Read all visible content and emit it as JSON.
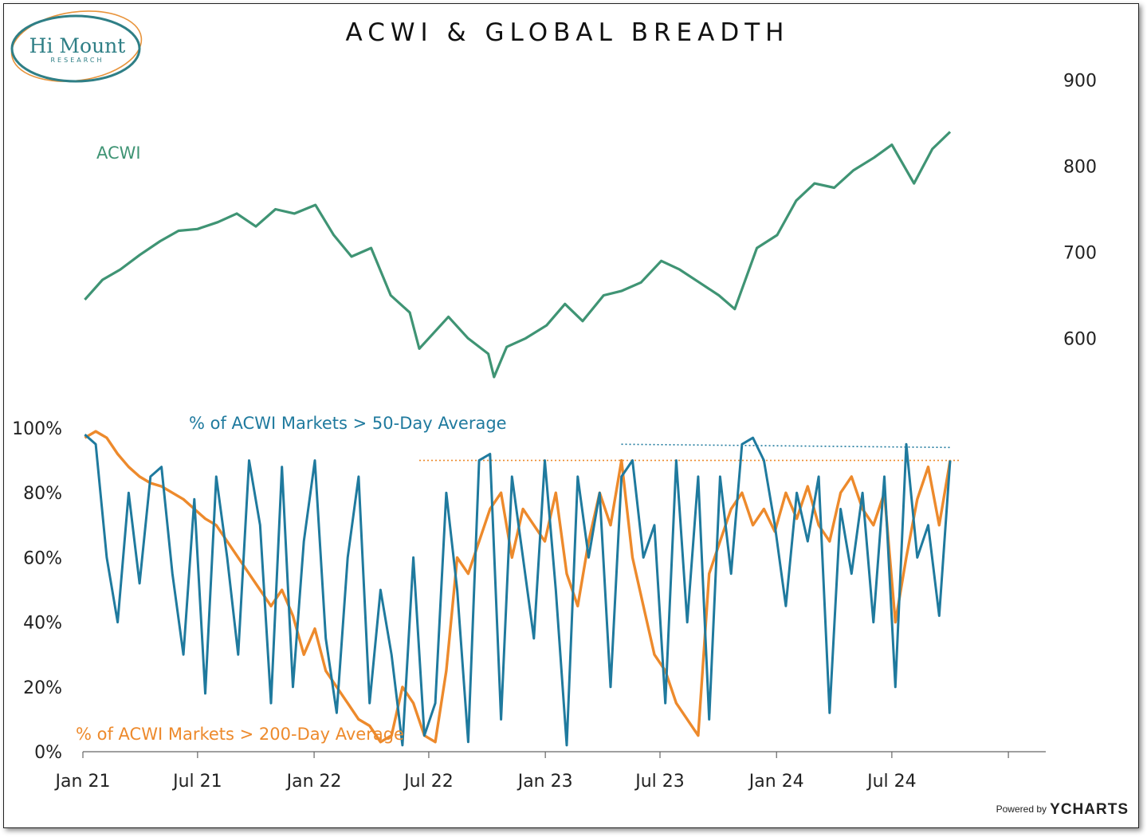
{
  "logo": {
    "name": "Hi Mount",
    "sub": "RESEARCH"
  },
  "footer": {
    "powered_by": "Powered by",
    "brand": "YCHARTS"
  },
  "chart_data": [
    {
      "type": "line",
      "title": "ACWI & GLOBAL BREADTH",
      "series_label": "ACWI",
      "color": "#3f9474",
      "ylim": [
        530,
        920
      ],
      "ytick_values": [
        600,
        700,
        800,
        900
      ],
      "x_tick_labels": [
        "Jan 21",
        "Jul 21",
        "Jan 22",
        "Jul 22",
        "Jan 23",
        "Jul 23",
        "Jan 24",
        "Jul 24"
      ],
      "x": [
        "2021-01-04",
        "2021-02-01",
        "2021-03-01",
        "2021-04-01",
        "2021-05-03",
        "2021-06-01",
        "2021-07-01",
        "2021-08-02",
        "2021-09-01",
        "2021-10-01",
        "2021-11-01",
        "2021-12-01",
        "2022-01-03",
        "2022-02-01",
        "2022-03-01",
        "2022-04-01",
        "2022-05-02",
        "2022-06-01",
        "2022-06-16",
        "2022-07-01",
        "2022-08-01",
        "2022-09-01",
        "2022-10-03",
        "2022-10-12",
        "2022-11-01",
        "2022-12-01",
        "2023-01-03",
        "2023-02-01",
        "2023-03-01",
        "2023-04-03",
        "2023-05-01",
        "2023-06-01",
        "2023-07-03",
        "2023-08-01",
        "2023-09-01",
        "2023-10-02",
        "2023-10-27",
        "2023-12-01",
        "2024-01-02",
        "2024-02-01",
        "2024-03-01",
        "2024-04-01",
        "2024-05-01",
        "2024-06-03",
        "2024-07-01",
        "2024-08-05",
        "2024-09-03",
        "2024-10-01"
      ],
      "values": [
        645,
        668,
        680,
        697,
        713,
        725,
        727,
        735,
        745,
        730,
        750,
        745,
        755,
        720,
        695,
        705,
        650,
        630,
        588,
        600,
        625,
        600,
        582,
        555,
        590,
        600,
        615,
        640,
        620,
        650,
        655,
        665,
        690,
        680,
        665,
        650,
        634,
        705,
        720,
        760,
        780,
        775,
        795,
        810,
        825,
        780,
        820,
        840
      ]
    },
    {
      "type": "line",
      "series": [
        {
          "name": "% of ACWI Markets > 50-Day Average",
          "color": "#1f7a9e",
          "values": [
            98,
            95,
            60,
            40,
            80,
            52,
            85,
            88,
            55,
            30,
            78,
            18,
            85,
            60,
            30,
            90,
            70,
            15,
            88,
            20,
            65,
            90,
            35,
            12,
            60,
            85,
            15,
            50,
            30,
            2,
            60,
            5,
            15,
            80,
            50,
            3,
            90,
            92,
            10,
            85,
            60,
            35,
            90,
            50,
            2,
            85,
            60,
            80,
            20,
            85,
            90,
            60,
            70,
            15,
            90,
            40,
            85,
            10,
            85,
            55,
            95,
            97,
            90,
            70,
            45,
            80,
            65,
            85,
            12,
            75,
            55,
            80,
            40,
            85,
            20,
            95,
            60,
            70,
            42,
            90
          ]
        },
        {
          "name": "% of ACWI Markets > 200-Day Average",
          "color": "#ed8a2c",
          "values": [
            97,
            99,
            97,
            92,
            88,
            85,
            83,
            82,
            80,
            78,
            75,
            72,
            70,
            65,
            60,
            55,
            50,
            45,
            50,
            42,
            30,
            38,
            25,
            20,
            15,
            10,
            8,
            3,
            5,
            20,
            15,
            5,
            3,
            25,
            60,
            55,
            65,
            75,
            80,
            60,
            75,
            70,
            65,
            80,
            55,
            45,
            65,
            80,
            70,
            90,
            60,
            45,
            30,
            25,
            15,
            10,
            5,
            55,
            65,
            75,
            80,
            70,
            75,
            68,
            80,
            72,
            82,
            70,
            65,
            80,
            85,
            75,
            70,
            80,
            40,
            60,
            78,
            88,
            70,
            90
          ]
        }
      ],
      "ylim": [
        0,
        100
      ],
      "ytick_labels": [
        "0%",
        "20%",
        "40%",
        "60%",
        "80%",
        "100%"
      ],
      "reference_lines": [
        {
          "color": "#1f7a9e",
          "style": "dotted",
          "from": "2023-05-01",
          "to": "2024-10-01",
          "values": [
            95,
            94
          ]
        },
        {
          "color": "#ed8a2c",
          "style": "dotted",
          "from": "2022-06-16",
          "to": "2024-10-15",
          "values": [
            90,
            90
          ]
        }
      ],
      "x_tick_labels": [
        "Jan 21",
        "Jul 21",
        "Jan 22",
        "Jul 22",
        "Jan 23",
        "Jul 23",
        "Jan 24",
        "Jul 24"
      ],
      "grid": false,
      "legend": "inline labels"
    }
  ]
}
